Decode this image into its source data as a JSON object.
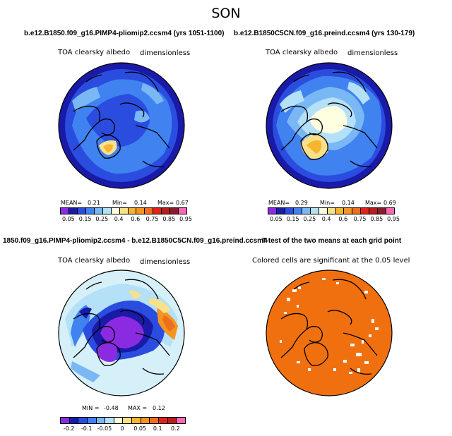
{
  "season": "SON",
  "panels": {
    "top_left": {
      "title": "b.e12.B1850.f09_g16.PIMP4-pliomip2.ccsm4 (yrs 1051-1100)",
      "variable": "TOA clearsky albedo",
      "units": "dimensionless",
      "stats": {
        "mean_label": "MEAN=",
        "mean": "0.21",
        "min_label": "Min=",
        "min": "0.14",
        "max_label": "Max=",
        "max": "0.67"
      }
    },
    "top_right": {
      "title": "b.e12.B1850C5CN.f09_g16.preind.ccsm4 (yrs 130-179)",
      "variable": "TOA clearsky albedo",
      "units": "dimensionless",
      "stats": {
        "mean_label": "MEAN=",
        "mean": "0.29",
        "min_label": "Min=",
        "min": "0.14",
        "max_label": "Max=",
        "max": "0.69"
      }
    },
    "bottom_left": {
      "title": "1850.f09_g16.PIMP4-pliomip2.ccsm4 - b.e12.B1850C5CN.f09_g16.preind.ccsm4",
      "variable": "TOA clearsky albedo",
      "units": "dimensionless",
      "stats": {
        "min_label": "MIN =",
        "min": "-0.48",
        "max_label": "MAX =",
        "max": "0.12"
      }
    },
    "bottom_right": {
      "title": "T-test of the two means at each grid point",
      "note": "Colored cells are significant at the 0.05 level"
    }
  },
  "colorbars": {
    "albedo": {
      "ticks": [
        "0.05",
        "0.15",
        "0.25",
        "0.4",
        "0.6",
        "0.75",
        "0.85",
        "0.95"
      ],
      "colors": [
        "#8a2be2",
        "#1a1aa8",
        "#2a4de0",
        "#3f82f0",
        "#7ab7f5",
        "#b4e0f8",
        "#fefee0",
        "#f8e18a",
        "#f6b52d",
        "#f39423",
        "#ee6e1c",
        "#e2201c",
        "#b81c1c",
        "#8a1c2a",
        "#ff69b4"
      ]
    },
    "difference": {
      "ticks": [
        "-0.2",
        "-0.1",
        "-0.05",
        "0",
        "0.05",
        "0.1",
        "0.2"
      ],
      "colors": [
        "#8a2be2",
        "#1a1aa8",
        "#2a4de0",
        "#3f82f0",
        "#7ab7f5",
        "#b4e0f8",
        "#fefee0",
        "#f8e18a",
        "#f6b52d",
        "#f39423",
        "#ee6e1c",
        "#e2201c",
        "#b81c1c",
        "#ff69b4"
      ]
    }
  },
  "map_colors": {
    "land": "#ffffff",
    "coast": "#000000",
    "ttest_fill": "#f07010"
  }
}
